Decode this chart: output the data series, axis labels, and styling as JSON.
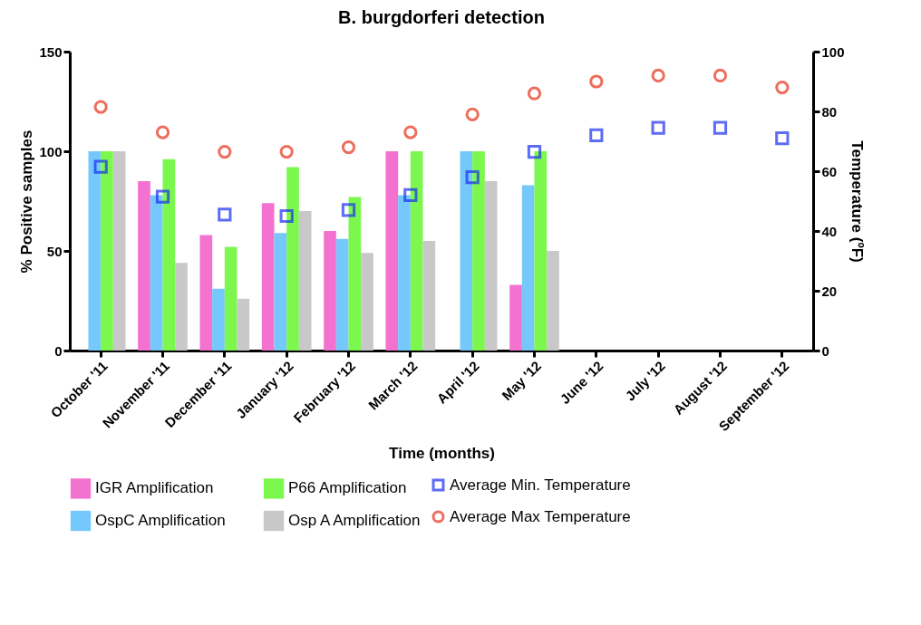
{
  "chart_data": {
    "type": "bar",
    "title": "B. burgdorferi detection",
    "xlabel": "Time (months)",
    "ylabel": "% Positive samples",
    "y2label": "Temperature (ºF)",
    "categories": [
      "October '11",
      "November '11",
      "December '11",
      "January '12",
      "February '12",
      "March '12",
      "April '12",
      "May '12",
      "June '12",
      "July '12",
      "August '12",
      "September '12"
    ],
    "ylim": [
      0,
      150
    ],
    "yticks": [
      0,
      50,
      100,
      150
    ],
    "y2lim": [
      0,
      100
    ],
    "y2ticks": [
      0,
      20,
      40,
      60,
      80,
      100
    ],
    "grid": false,
    "legend": "bottom",
    "series": [
      {
        "name": "IGR Amplification",
        "color": "#f472cf",
        "values": [
          null,
          85,
          58,
          74,
          60,
          100,
          null,
          33,
          null,
          null,
          null,
          null
        ]
      },
      {
        "name": "OspC Amplification",
        "color": "#74c8fb",
        "values": [
          100,
          78,
          31,
          59,
          56,
          78,
          100,
          83,
          null,
          null,
          null,
          null
        ]
      },
      {
        "name": "P66 Amplification",
        "color": "#7cf74e",
        "values": [
          100,
          96,
          52,
          92,
          77,
          100,
          100,
          100,
          null,
          null,
          null,
          null
        ]
      },
      {
        "name": "Osp A Amplification",
        "color": "#c8c8c8",
        "values": [
          100,
          44,
          26,
          70,
          49,
          55,
          85,
          50,
          null,
          null,
          null,
          null
        ]
      },
      {
        "name": "Average Min. Temperature",
        "type": "scatter",
        "axis": "y2",
        "marker": "square",
        "color": "#1a2ef0",
        "values": [
          61.5,
          51.5,
          45.5,
          45,
          47,
          52,
          58,
          66.5,
          72,
          74.5,
          74.5,
          71
        ]
      },
      {
        "name": "Average Max Temperature",
        "type": "scatter",
        "axis": "y2",
        "marker": "circle",
        "color": "#e8301a",
        "values": [
          81.5,
          73,
          66.5,
          66.5,
          68,
          73,
          79,
          86,
          90,
          92,
          92,
          88
        ]
      }
    ]
  }
}
